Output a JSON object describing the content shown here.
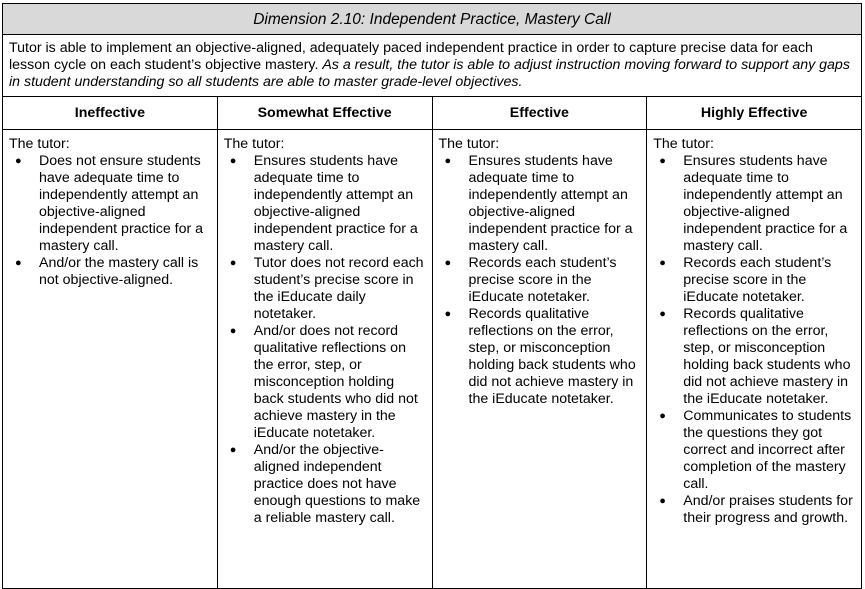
{
  "title": "Dimension 2.10: Independent Practice, Mastery Call",
  "description": {
    "normal": "Tutor is able to implement an objective-aligned, adequately paced independent practice in order to capture precise data for each lesson cycle on each student’s objective mastery. ",
    "italic": "As a result, the tutor is able to adjust instruction moving forward to support any gaps in student understanding so all students are able to master grade-level objectives."
  },
  "columns": [
    {
      "header": "Ineffective",
      "intro": "The tutor:",
      "items": [
        "Does not ensure students have adequate time to independently attempt an objective-aligned independent practice for a mastery call.",
        "And/or the mastery call is not objective-aligned."
      ]
    },
    {
      "header": "Somewhat Effective",
      "intro": "The tutor:",
      "items": [
        "Ensures students have adequate time to independently attempt an objective-aligned independent practice for a mastery call.",
        "Tutor does not record each student’s precise score in the iEducate daily notetaker.",
        "And/or does not record qualitative reflections on the error, step, or misconception holding back students who did not achieve mastery in the iEducate notetaker.",
        "And/or the objective-aligned independent practice does not have enough questions to make a reliable mastery call."
      ]
    },
    {
      "header": "Effective",
      "intro": "The tutor:",
      "items": [
        "Ensures students have adequate time to independently attempt an objective-aligned independent practice for a mastery call.",
        "Records each student’s precise score in the iEducate notetaker.",
        "Records qualitative reflections on the error, step, or misconception holding back students who did not achieve mastery in the iEducate notetaker."
      ]
    },
    {
      "header": "Highly Effective",
      "intro": "The tutor:",
      "items": [
        "Ensures students have adequate time to independently attempt an objective-aligned independent practice for a mastery call.",
        "Records each student’s precise score in the iEducate notetaker.",
        "Records qualitative reflections on the error, step, or misconception holding back students who did not achieve mastery in the iEducate notetaker.",
        "Communicates to students the questions they got correct and incorrect after completion of the mastery call.",
        "And/or praises students for their progress and growth."
      ]
    }
  ]
}
